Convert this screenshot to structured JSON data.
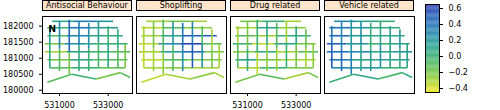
{
  "chart_data": {
    "type": "map",
    "north_label": "N",
    "xlim": [
      530300,
      534000
    ],
    "ylim": [
      179900,
      182300
    ],
    "xticks": [
      531000,
      533000
    ],
    "yticks": [
      180000,
      180500,
      181000,
      181500,
      182000
    ],
    "colorbar": {
      "range": [
        -0.45,
        0.65
      ],
      "ticks": [
        -0.4,
        -0.2,
        0,
        0.2,
        0.4,
        0.6
      ]
    },
    "segments": [
      [
        530700,
        182150,
        531600,
        182150
      ],
      [
        531600,
        182150,
        532500,
        182150
      ],
      [
        532500,
        182150,
        533200,
        182150
      ],
      [
        530500,
        181950,
        531400,
        181950
      ],
      [
        531400,
        181950,
        532300,
        181950
      ],
      [
        532300,
        181950,
        533400,
        181950
      ],
      [
        530500,
        181700,
        531300,
        181700
      ],
      [
        531300,
        181700,
        532200,
        181700
      ],
      [
        532200,
        181700,
        533600,
        181700
      ],
      [
        530400,
        181450,
        531200,
        181450
      ],
      [
        531200,
        181450,
        532100,
        181450
      ],
      [
        532100,
        181450,
        533000,
        181450
      ],
      [
        533000,
        181450,
        533800,
        181450
      ],
      [
        530400,
        181200,
        531300,
        181200
      ],
      [
        531300,
        181200,
        532200,
        181200
      ],
      [
        532200,
        181200,
        533100,
        181200
      ],
      [
        533100,
        181200,
        533900,
        181200
      ],
      [
        530500,
        180950,
        531400,
        180950
      ],
      [
        531400,
        180950,
        532400,
        180950
      ],
      [
        532400,
        180950,
        533800,
        180950
      ],
      [
        530600,
        180700,
        531500,
        180700
      ],
      [
        531500,
        180700,
        532600,
        180700
      ],
      [
        532600,
        180700,
        533700,
        180700
      ],
      [
        530600,
        180700,
        530600,
        181450
      ],
      [
        530600,
        181450,
        530600,
        182000
      ],
      [
        531000,
        180600,
        531000,
        181300
      ],
      [
        531000,
        181300,
        531000,
        182150
      ],
      [
        531400,
        180500,
        531400,
        181200
      ],
      [
        531400,
        181200,
        531400,
        182200
      ],
      [
        531800,
        180600,
        531800,
        181400
      ],
      [
        531800,
        181400,
        531800,
        182150
      ],
      [
        532200,
        180600,
        532200,
        181300
      ],
      [
        532200,
        181300,
        532200,
        182100
      ],
      [
        532600,
        180700,
        532600,
        181500
      ],
      [
        532600,
        181500,
        532600,
        182150
      ],
      [
        533000,
        180700,
        533000,
        181450
      ],
      [
        533000,
        181450,
        533000,
        182000
      ],
      [
        533400,
        180700,
        533400,
        181300
      ],
      [
        533400,
        181300,
        533400,
        181900
      ],
      [
        533700,
        180700,
        533700,
        181450
      ],
      [
        530500,
        180250,
        531500,
        180500
      ],
      [
        531500,
        180500,
        532500,
        180350
      ],
      [
        532500,
        180350,
        533500,
        180550
      ],
      [
        533500,
        180550,
        533900,
        180400
      ]
    ],
    "panels": [
      {
        "title": "Antisocial Behaviour",
        "values": [
          0.1,
          0.35,
          0.2,
          0.0,
          0.4,
          0.15,
          -0.1,
          0.3,
          0.1,
          -0.2,
          0.2,
          0.05,
          0.0,
          -0.3,
          0.1,
          0.0,
          -0.1,
          -0.2,
          0.05,
          -0.1,
          -0.1,
          0.0,
          -0.15,
          0.1,
          0.2,
          -0.1,
          0.3,
          -0.2,
          0.45,
          0.05,
          0.35,
          0.0,
          0.25,
          -0.05,
          0.15,
          0.1,
          0.0,
          -0.1,
          0.05,
          -0.2,
          -0.1,
          0.0,
          -0.2,
          -0.1
        ]
      },
      {
        "title": "Shoplifting",
        "values": [
          -0.3,
          -0.2,
          -0.3,
          -0.35,
          -0.1,
          -0.25,
          -0.3,
          0.1,
          0.5,
          -0.35,
          0.3,
          0.6,
          -0.1,
          -0.3,
          0.2,
          0.45,
          -0.2,
          -0.35,
          -0.1,
          -0.2,
          -0.3,
          -0.25,
          -0.3,
          -0.35,
          -0.3,
          -0.3,
          -0.2,
          -0.25,
          -0.1,
          -0.1,
          0.2,
          0.3,
          0.4,
          0.5,
          0.3,
          0.2,
          -0.1,
          -0.2,
          -0.3,
          -0.3,
          -0.35,
          -0.3,
          -0.25,
          -0.3
        ]
      },
      {
        "title": "Drug related",
        "values": [
          -0.2,
          0.0,
          -0.3,
          -0.3,
          0.1,
          -0.25,
          -0.1,
          -0.3,
          0.05,
          0.0,
          -0.35,
          0.1,
          -0.2,
          -0.25,
          0.05,
          -0.3,
          -0.1,
          0.1,
          -0.2,
          -0.3,
          -0.3,
          0.0,
          -0.2,
          -0.1,
          -0.3,
          0.05,
          -0.2,
          -0.35,
          0.0,
          -0.25,
          0.1,
          -0.3,
          -0.1,
          0.0,
          -0.3,
          -0.2,
          0.1,
          -0.3,
          -0.15,
          -0.25,
          -0.2,
          -0.1,
          -0.3,
          -0.2
        ]
      },
      {
        "title": "Vehicle related",
        "values": [
          0.3,
          0.1,
          0.0,
          0.4,
          0.2,
          0.05,
          0.45,
          0.15,
          0.1,
          0.5,
          0.2,
          0.0,
          0.1,
          0.4,
          0.3,
          0.1,
          0.2,
          0.35,
          0.1,
          0.15,
          0.3,
          0.2,
          0.0,
          0.5,
          0.4,
          0.45,
          0.3,
          0.35,
          0.2,
          0.1,
          0.25,
          0.15,
          0.0,
          0.2,
          0.05,
          0.1,
          0.15,
          0.05,
          0.2,
          0.1,
          0.0,
          0.1,
          -0.05,
          0.05
        ]
      }
    ]
  }
}
